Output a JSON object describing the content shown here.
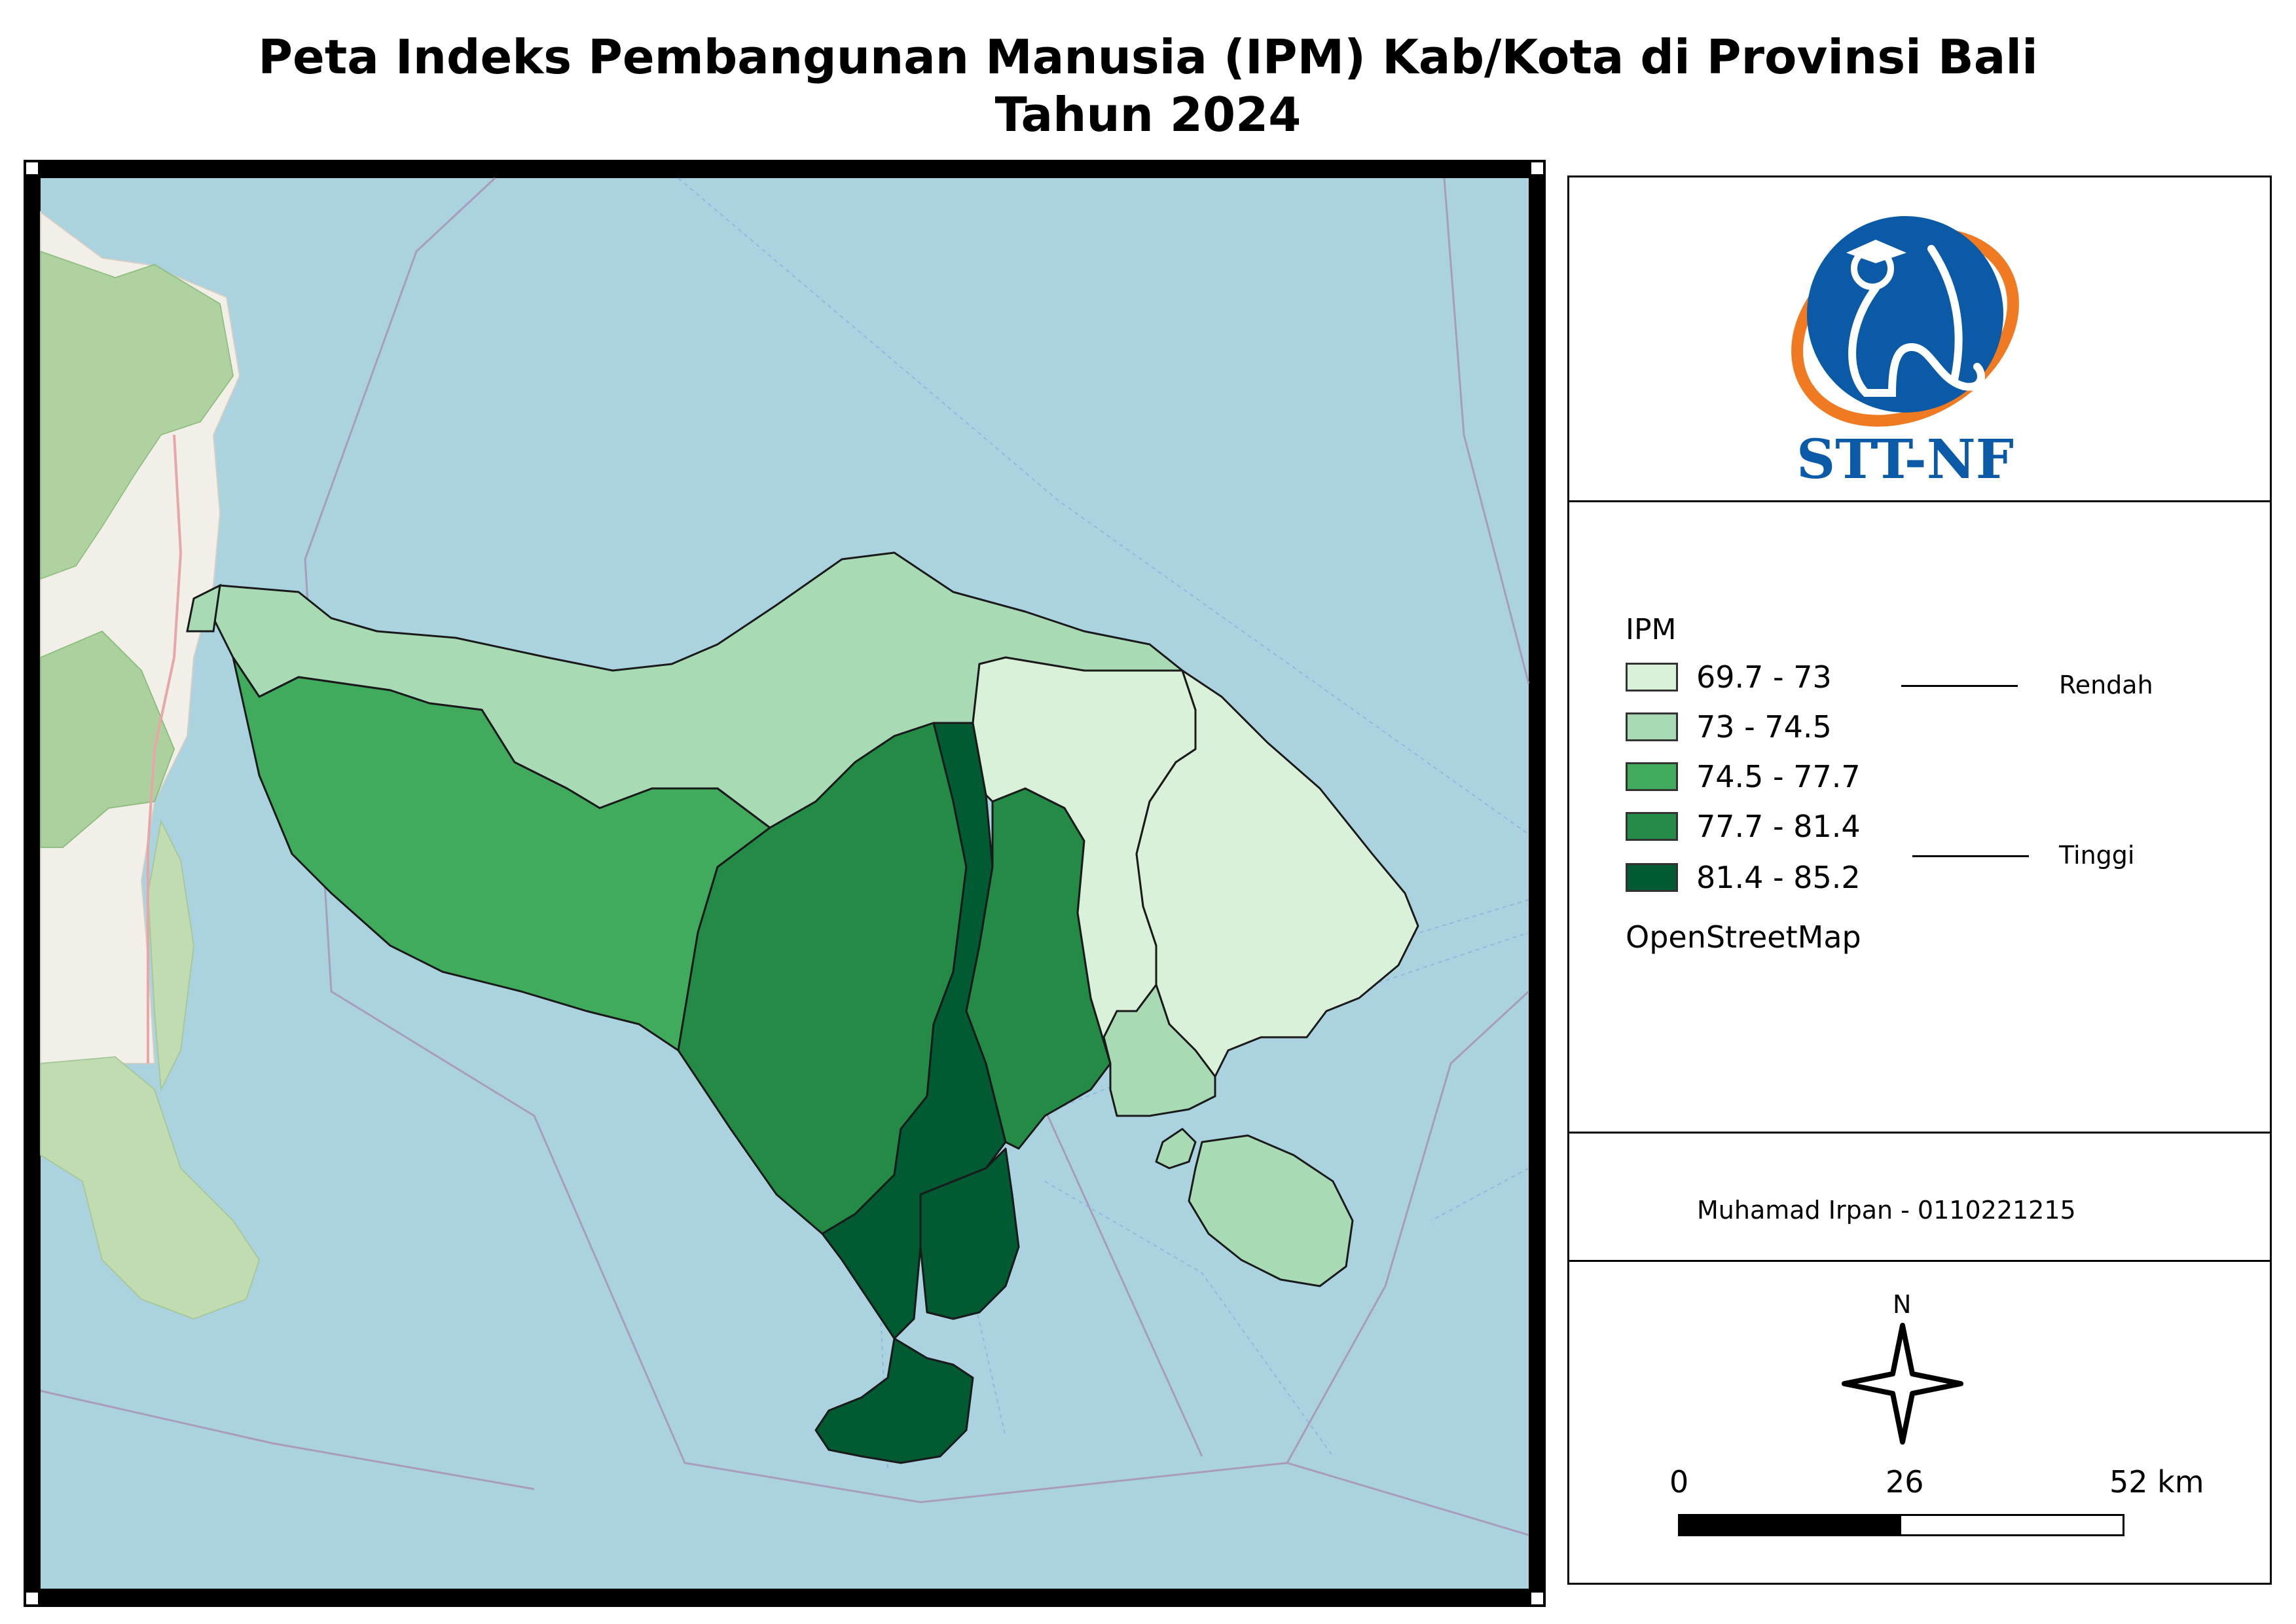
{
  "title": {
    "line1": "Peta Indeks Pembangunan Manusia (IPM) Kab/Kota di Provinsi Bali",
    "line2": "Tahun 2024"
  },
  "logo": {
    "text": "STT-NF",
    "ring_color": "#f07a21",
    "disc_color": "#0a5aa8"
  },
  "legend": {
    "title": "IPM",
    "classes": [
      {
        "label": "69.7 - 73",
        "color": "#d9f0d9"
      },
      {
        "label": "73 - 74.5",
        "color": "#a8dab4"
      },
      {
        "label": "74.5 - 77.7",
        "color": "#41ab5d"
      },
      {
        "label": "77.7 - 81.4",
        "color": "#238b45"
      },
      {
        "label": "81.4 - 85.2",
        "color": "#005a32"
      }
    ],
    "low_label": "Rendah",
    "high_label": "Tinggi",
    "basemap": "OpenStreetMap"
  },
  "author": "Muhamad Irpan - 0110221215",
  "north": "N",
  "scale": {
    "labels": [
      "0",
      "26",
      "52 km"
    ]
  },
  "colors": {
    "sea": "#aad3df",
    "land_java": "#f2efe9",
    "forest": "#add19e"
  }
}
